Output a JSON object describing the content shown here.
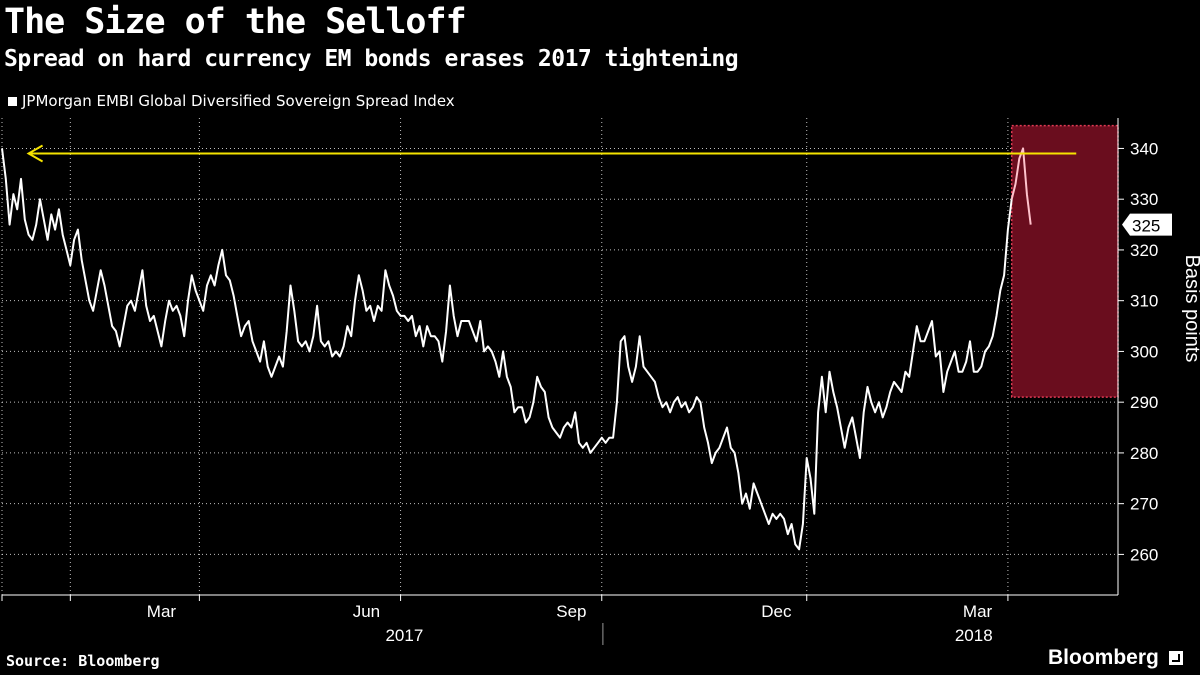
{
  "header": {
    "title": "The Size of the Selloff",
    "subtitle": "Spread on hard currency EM bonds erases 2017 tightening"
  },
  "legend": {
    "label": "JPMorgan EMBI Global Diversified Sovereign Spread Index"
  },
  "footer": {
    "source": "Source: Bloomberg",
    "brand": "Bloomberg"
  },
  "chart_data": {
    "type": "line",
    "title": "The Size of the Selloff",
    "ylabel": "Basis points",
    "ylim": [
      252,
      346
    ],
    "yticks": [
      260,
      270,
      280,
      290,
      300,
      310,
      320,
      330,
      340
    ],
    "xlim": [
      0,
      294
    ],
    "month_ticks": [
      0,
      18,
      52,
      105,
      158,
      212,
      265
    ],
    "month_labels": [
      {
        "label": "Mar",
        "pos": 42
      },
      {
        "label": "Jun",
        "pos": 96
      },
      {
        "label": "Sep",
        "pos": 150
      },
      {
        "label": "Dec",
        "pos": 204
      },
      {
        "label": "Mar",
        "pos": 257
      }
    ],
    "year_labels": [
      {
        "label": "2017",
        "pos": 106
      },
      {
        "label": "2018",
        "pos": 256
      }
    ],
    "last_value_label": "325",
    "highlight": {
      "x_start": 266,
      "x_end": 294,
      "y_low": 291,
      "y_high": 344.5
    },
    "annotation_arrow": {
      "x_start": 283,
      "x_end": 7,
      "y": 339
    },
    "series": [
      {
        "name": "JPMorgan EMBI Global Diversified Sovereign Spread Index",
        "points": [
          [
            0,
            340
          ],
          [
            1,
            334
          ],
          [
            2,
            325
          ],
          [
            3,
            331
          ],
          [
            4,
            328
          ],
          [
            5,
            334
          ],
          [
            6,
            326
          ],
          [
            7,
            323
          ],
          [
            8,
            322
          ],
          [
            9,
            325
          ],
          [
            10,
            330
          ],
          [
            11,
            326
          ],
          [
            12,
            322
          ],
          [
            13,
            327
          ],
          [
            14,
            324
          ],
          [
            15,
            328
          ],
          [
            16,
            323
          ],
          [
            17,
            320
          ],
          [
            18,
            317
          ],
          [
            19,
            322
          ],
          [
            20,
            324
          ],
          [
            21,
            318
          ],
          [
            22,
            314
          ],
          [
            23,
            310
          ],
          [
            24,
            308
          ],
          [
            25,
            312
          ],
          [
            26,
            316
          ],
          [
            27,
            313
          ],
          [
            28,
            309
          ],
          [
            29,
            305
          ],
          [
            30,
            304
          ],
          [
            31,
            301
          ],
          [
            32,
            305
          ],
          [
            33,
            309
          ],
          [
            34,
            310
          ],
          [
            35,
            308
          ],
          [
            36,
            312
          ],
          [
            37,
            316
          ],
          [
            38,
            309
          ],
          [
            39,
            306
          ],
          [
            40,
            307
          ],
          [
            41,
            304
          ],
          [
            42,
            301
          ],
          [
            43,
            306
          ],
          [
            44,
            310
          ],
          [
            45,
            308
          ],
          [
            46,
            309
          ],
          [
            47,
            307
          ],
          [
            48,
            303
          ],
          [
            49,
            310
          ],
          [
            50,
            315
          ],
          [
            51,
            312
          ],
          [
            52,
            310
          ],
          [
            53,
            308
          ],
          [
            54,
            313
          ],
          [
            55,
            315
          ],
          [
            56,
            313
          ],
          [
            57,
            317
          ],
          [
            58,
            320
          ],
          [
            59,
            315
          ],
          [
            60,
            314
          ],
          [
            61,
            311
          ],
          [
            62,
            307
          ],
          [
            63,
            303
          ],
          [
            64,
            305
          ],
          [
            65,
            306
          ],
          [
            66,
            302
          ],
          [
            67,
            300
          ],
          [
            68,
            298
          ],
          [
            69,
            302
          ],
          [
            70,
            297
          ],
          [
            71,
            295
          ],
          [
            72,
            297
          ],
          [
            73,
            299
          ],
          [
            74,
            297
          ],
          [
            75,
            304
          ],
          [
            76,
            313
          ],
          [
            77,
            308
          ],
          [
            78,
            302
          ],
          [
            79,
            301
          ],
          [
            80,
            302
          ],
          [
            81,
            300
          ],
          [
            82,
            303
          ],
          [
            83,
            309
          ],
          [
            84,
            302
          ],
          [
            85,
            301
          ],
          [
            86,
            302
          ],
          [
            87,
            299
          ],
          [
            88,
            300
          ],
          [
            89,
            299
          ],
          [
            90,
            301
          ],
          [
            91,
            305
          ],
          [
            92,
            303
          ],
          [
            93,
            310
          ],
          [
            94,
            315
          ],
          [
            95,
            312
          ],
          [
            96,
            308
          ],
          [
            97,
            309
          ],
          [
            98,
            306
          ],
          [
            99,
            309
          ],
          [
            100,
            308
          ],
          [
            101,
            316
          ],
          [
            102,
            313
          ],
          [
            103,
            311
          ],
          [
            104,
            308
          ],
          [
            105,
            307
          ],
          [
            106,
            307
          ],
          [
            107,
            306
          ],
          [
            108,
            307
          ],
          [
            109,
            303
          ],
          [
            110,
            305
          ],
          [
            111,
            301
          ],
          [
            112,
            305
          ],
          [
            113,
            303
          ],
          [
            114,
            303
          ],
          [
            115,
            302
          ],
          [
            116,
            298
          ],
          [
            117,
            304
          ],
          [
            118,
            313
          ],
          [
            119,
            307
          ],
          [
            120,
            303
          ],
          [
            121,
            306
          ],
          [
            122,
            306
          ],
          [
            123,
            306
          ],
          [
            124,
            304
          ],
          [
            125,
            302
          ],
          [
            126,
            306
          ],
          [
            127,
            300
          ],
          [
            128,
            301
          ],
          [
            129,
            300
          ],
          [
            130,
            298
          ],
          [
            131,
            295
          ],
          [
            132,
            300
          ],
          [
            133,
            295
          ],
          [
            134,
            293
          ],
          [
            135,
            288
          ],
          [
            136,
            289
          ],
          [
            137,
            289
          ],
          [
            138,
            286
          ],
          [
            139,
            287
          ],
          [
            140,
            290
          ],
          [
            141,
            295
          ],
          [
            142,
            293
          ],
          [
            143,
            292
          ],
          [
            144,
            287
          ],
          [
            145,
            285
          ],
          [
            146,
            284
          ],
          [
            147,
            283
          ],
          [
            148,
            285
          ],
          [
            149,
            286
          ],
          [
            150,
            285
          ],
          [
            151,
            288
          ],
          [
            152,
            282
          ],
          [
            153,
            281
          ],
          [
            154,
            282
          ],
          [
            155,
            280
          ],
          [
            156,
            281
          ],
          [
            157,
            282
          ],
          [
            158,
            283
          ],
          [
            159,
            282
          ],
          [
            160,
            283
          ],
          [
            161,
            283
          ],
          [
            162,
            290
          ],
          [
            163,
            302
          ],
          [
            164,
            303
          ],
          [
            165,
            297
          ],
          [
            166,
            294
          ],
          [
            167,
            297
          ],
          [
            168,
            303
          ],
          [
            169,
            297
          ],
          [
            170,
            296
          ],
          [
            171,
            295
          ],
          [
            172,
            294
          ],
          [
            173,
            291
          ],
          [
            174,
            289
          ],
          [
            175,
            290
          ],
          [
            176,
            288
          ],
          [
            177,
            290
          ],
          [
            178,
            291
          ],
          [
            179,
            289
          ],
          [
            180,
            290
          ],
          [
            181,
            288
          ],
          [
            182,
            289
          ],
          [
            183,
            291
          ],
          [
            184,
            290
          ],
          [
            185,
            285
          ],
          [
            186,
            282
          ],
          [
            187,
            278
          ],
          [
            188,
            280
          ],
          [
            189,
            281
          ],
          [
            190,
            283
          ],
          [
            191,
            285
          ],
          [
            192,
            281
          ],
          [
            193,
            280
          ],
          [
            194,
            276
          ],
          [
            195,
            270
          ],
          [
            196,
            272
          ],
          [
            197,
            269
          ],
          [
            198,
            274
          ],
          [
            199,
            272
          ],
          [
            200,
            270
          ],
          [
            201,
            268
          ],
          [
            202,
            266
          ],
          [
            203,
            268
          ],
          [
            204,
            267
          ],
          [
            205,
            268
          ],
          [
            206,
            267
          ],
          [
            207,
            264
          ],
          [
            208,
            266
          ],
          [
            209,
            262
          ],
          [
            210,
            261
          ],
          [
            211,
            266
          ],
          [
            212,
            279
          ],
          [
            213,
            275
          ],
          [
            214,
            268
          ],
          [
            215,
            288
          ],
          [
            216,
            295
          ],
          [
            217,
            288
          ],
          [
            218,
            296
          ],
          [
            219,
            292
          ],
          [
            220,
            289
          ],
          [
            221,
            285
          ],
          [
            222,
            281
          ],
          [
            223,
            285
          ],
          [
            224,
            287
          ],
          [
            225,
            283
          ],
          [
            226,
            279
          ],
          [
            227,
            288
          ],
          [
            228,
            293
          ],
          [
            229,
            290
          ],
          [
            230,
            288
          ],
          [
            231,
            290
          ],
          [
            232,
            287
          ],
          [
            233,
            289
          ],
          [
            234,
            292
          ],
          [
            235,
            294
          ],
          [
            236,
            293
          ],
          [
            237,
            292
          ],
          [
            238,
            296
          ],
          [
            239,
            295
          ],
          [
            240,
            300
          ],
          [
            241,
            305
          ],
          [
            242,
            302
          ],
          [
            243,
            302
          ],
          [
            244,
            304
          ],
          [
            245,
            306
          ],
          [
            246,
            299
          ],
          [
            247,
            300
          ],
          [
            248,
            292
          ],
          [
            249,
            296
          ],
          [
            250,
            298
          ],
          [
            251,
            300
          ],
          [
            252,
            296
          ],
          [
            253,
            296
          ],
          [
            254,
            298
          ],
          [
            255,
            302
          ],
          [
            256,
            296
          ],
          [
            257,
            296
          ],
          [
            258,
            297
          ],
          [
            259,
            300
          ],
          [
            260,
            301
          ],
          [
            261,
            303
          ],
          [
            262,
            307
          ],
          [
            263,
            312
          ],
          [
            264,
            315
          ],
          [
            265,
            324
          ],
          [
            266,
            330
          ],
          [
            267,
            333
          ],
          [
            268,
            338
          ],
          [
            269,
            340
          ],
          [
            270,
            331
          ],
          [
            271,
            325
          ]
        ]
      }
    ]
  }
}
